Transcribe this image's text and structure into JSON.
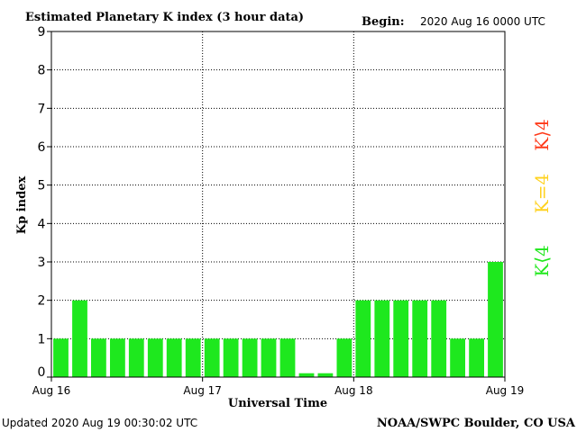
{
  "header": {
    "title": "Estimated Planetary K index (3 hour data)",
    "begin_label": "Begin:",
    "begin_value": "2020 Aug 16 0000 UTC"
  },
  "footer": {
    "updated": "Updated 2020 Aug 19 00:30:02 UTC",
    "source": "NOAA/SWPC Boulder, CO USA"
  },
  "legend": [
    {
      "text": "K⟨4",
      "color": "#22e81e"
    },
    {
      "text": "K=4",
      "color": "#ffd21e"
    },
    {
      "text": "K⟩4",
      "color": "#ff3a1a"
    }
  ],
  "colors": {
    "bar": "#1ee81e",
    "axis": "#000000",
    "grid": "#000000"
  },
  "chart_data": {
    "type": "bar",
    "title": "Estimated Planetary K index (3 hour data)",
    "xlabel": "Universal Time",
    "ylabel": "Kp index",
    "ylim": [
      0,
      9
    ],
    "yticks": [
      0,
      1,
      2,
      3,
      4,
      5,
      6,
      7,
      8,
      9
    ],
    "xtick_labels": [
      "Aug 16",
      "Aug 17",
      "Aug 18",
      "Aug 19"
    ],
    "grid": true,
    "values": [
      1,
      2,
      1,
      1,
      1,
      1,
      1,
      1,
      1,
      1,
      1,
      1,
      1,
      0.1,
      0.1,
      1,
      2,
      2,
      2,
      2,
      2,
      1,
      1,
      3
    ]
  }
}
